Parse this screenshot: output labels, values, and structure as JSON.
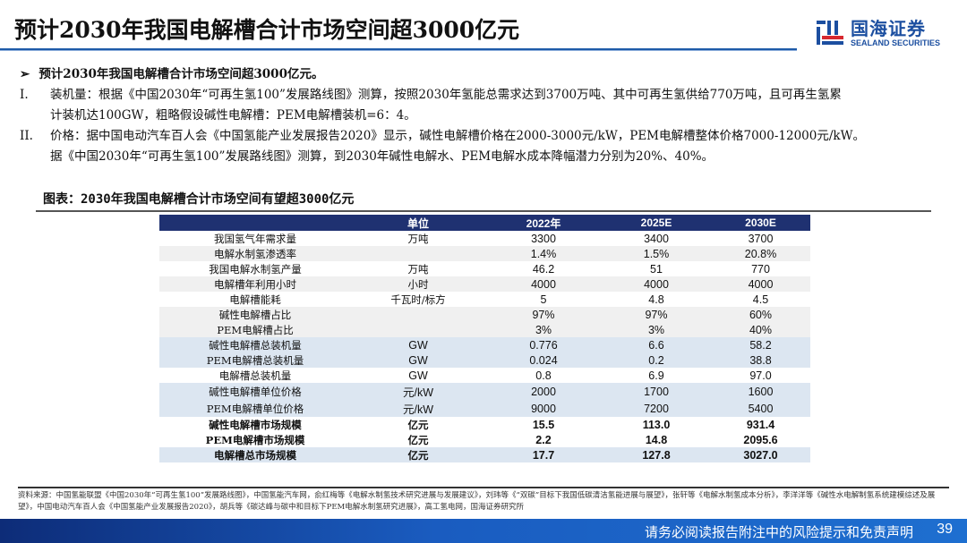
{
  "header": {
    "title": "预计2030年我国电解槽合计市场空间超3000亿元",
    "logo_cn": "国海证券",
    "logo_en": "SEALAND SECURITIES",
    "accent": "#1e5aa8"
  },
  "bullets": {
    "head": "预计2030年我国电解槽合计市场空间超3000亿元。",
    "items": [
      {
        "num": "I.",
        "line1": "装机量：根据《中国2030年“可再生氢100”发展路线图》测算，按照2030年氢能总需求达到3700万吨、其中可再生氢供给770万吨，且可再生氢累",
        "line2": "计装机达100GW，粗略假设碱性电解槽：PEM电解槽装机=6：4。"
      },
      {
        "num": "II.",
        "line1": "价格：据中国电动汽车百人会《中国氢能产业发展报告2020》显示，碱性电解槽价格在2000-3000元/kW，PEM电解槽整体价格7000-12000元/kW。",
        "line2": "据《中国2030年“可再生氢100”发展路线图》测算，到2030年碱性电解水、PEM电解水成本降幅潜力分别为20%、40%。"
      }
    ]
  },
  "table": {
    "caption": "图表：2030年我国电解槽合计市场空间有望超3000亿元",
    "headers": [
      "",
      "单位",
      "2022年",
      "2025E",
      "2030E"
    ],
    "rows": [
      [
        "我国氢气年需求量",
        "万吨",
        "3300",
        "3400",
        "3700"
      ],
      [
        "电解水制氢渗透率",
        "",
        "1.4%",
        "1.5%",
        "20.8%"
      ],
      [
        "我国电解水制氢产量",
        "万吨",
        "46.2",
        "51",
        "770"
      ],
      [
        "电解槽年利用小时",
        "小时",
        "4000",
        "4000",
        "4000"
      ],
      [
        "电解槽能耗",
        "千瓦时/标方",
        "5",
        "4.8",
        "4.5"
      ],
      [
        "碱性电解槽占比",
        "",
        "97%",
        "97%",
        "60%"
      ],
      [
        "PEM电解槽占比",
        "",
        "3%",
        "3%",
        "40%"
      ],
      [
        "碱性电解槽总装机量",
        "GW",
        "0.776",
        "6.6",
        "58.2"
      ],
      [
        "PEM电解槽总装机量",
        "GW",
        "0.024",
        "0.2",
        "38.8"
      ],
      [
        "电解槽总装机量",
        "GW",
        "0.8",
        "6.9",
        "97.0"
      ],
      [
        "碱性电解槽单位价格",
        "元/kW",
        "2000",
        "1700",
        "1600"
      ],
      [
        "PEM电解槽单位价格",
        "元/kW",
        "9000",
        "7200",
        "5400"
      ],
      [
        "碱性电解槽市场规模",
        "亿元",
        "15.5",
        "113.0",
        "931.4"
      ],
      [
        "PEM电解槽市场规模",
        "亿元",
        "2.2",
        "14.8",
        "2095.6"
      ],
      [
        "电解槽总市场规模",
        "亿元",
        "17.7",
        "127.8",
        "3027.0"
      ]
    ]
  },
  "source": "资料来源：中国氢能联盟《中国2030年“可再生氢100”发展路线图》，中国氢能汽车网，俞红梅等《电解水制氢技术研究进展与发展建议》，刘玮等《“双碳”目标下我国低碳清洁氢能进展与展望》，张轩等《电解水制氢成本分析》，李洋洋等《碱性水电解制氢系统建模综述及展望》，中国电动汽车百人会《中国氢能产业发展报告2020》，胡兵等《碳达峰与碳中和目标下PEM电解水制氢研究进展》，高工氢电网，国海证券研究所",
  "footer": {
    "disclaimer": "请务必阅读报告附注中的风险提示和免责声明",
    "page": "39"
  }
}
